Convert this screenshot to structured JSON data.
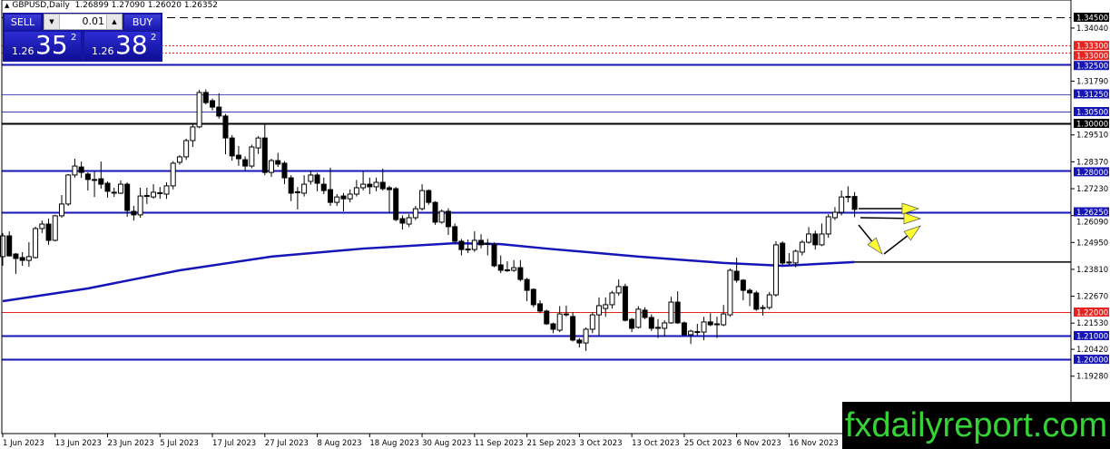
{
  "header": {
    "symbol_timeframe": "GBPUSD,Daily",
    "ohlc": "1.26899 1.27090 1.26020 1.26352"
  },
  "trade_panel": {
    "sell_label": "SELL",
    "buy_label": "BUY",
    "lot_size": "0.01",
    "sell_price_prefix": "1.26",
    "sell_price_big": "35",
    "sell_price_sup": "2",
    "buy_price_prefix": "1.26",
    "buy_price_big": "38",
    "buy_price_sup": "2",
    "step_down_icon": "triangle-down-icon",
    "step_up_icon": "triangle-up-icon"
  },
  "watermark": "fxdailyreport.com",
  "chart_data": {
    "type": "candlestick",
    "title": "GBPUSD,Daily",
    "ylim": [
      1.1895,
      1.3495
    ],
    "grid": false,
    "colors": {
      "bull_body": "#ffffff",
      "bear_body": "#000000",
      "wick": "#000000",
      "ma": "#1515b8"
    },
    "x_ticks": [
      {
        "label": "1 Jun 2023",
        "bar": 0
      },
      {
        "label": "13 Jun 2023",
        "bar": 8
      },
      {
        "label": "23 Jun 2023",
        "bar": 16
      },
      {
        "label": "5 Jul 2023",
        "bar": 24
      },
      {
        "label": "17 Jul 2023",
        "bar": 32
      },
      {
        "label": "27 Jul 2023",
        "bar": 40
      },
      {
        "label": "8 Aug 2023",
        "bar": 48
      },
      {
        "label": "18 Aug 2023",
        "bar": 56
      },
      {
        "label": "30 Aug 2023",
        "bar": 64
      },
      {
        "label": "11 Sep 2023",
        "bar": 72
      },
      {
        "label": "21 Sep 2023",
        "bar": 80
      },
      {
        "label": "3 Oct 2023",
        "bar": 88
      },
      {
        "label": "13 Oct 2023",
        "bar": 96
      },
      {
        "label": "25 Oct 2023",
        "bar": 104
      },
      {
        "label": "6 Nov 2023",
        "bar": 112
      },
      {
        "label": "16 Nov 2023",
        "bar": 120
      }
    ],
    "y_ticks": [
      "1.34040",
      "1.31790",
      "1.29510",
      "1.28370",
      "1.27230",
      "1.26090",
      "1.24950",
      "1.23810",
      "1.22670",
      "1.21530",
      "1.20420",
      "1.19280"
    ],
    "levels": [
      {
        "price": "1.34500",
        "color": "#000000",
        "style": "dashed"
      },
      {
        "price": "1.33300",
        "color": "#e8231f",
        "style": "dotted"
      },
      {
        "price": "1.33000",
        "color": "#e8231f",
        "style": "dotted"
      },
      {
        "price": "1.32500",
        "color": "#1515b8",
        "style": "thick"
      },
      {
        "price": "1.31250",
        "color": "#5555c0",
        "style": "thin"
      },
      {
        "price": "1.30500",
        "color": "#3a3ab8",
        "style": "thin"
      },
      {
        "price": "1.30000",
        "color": "#000000",
        "style": "thick"
      },
      {
        "price": "1.28000",
        "color": "#1515b8",
        "style": "thick"
      },
      {
        "price": "1.26250",
        "color": "#1515b8",
        "style": "thick"
      },
      {
        "price": "1.22000",
        "color": "#e8231f",
        "style": "thin"
      },
      {
        "price": "1.21000",
        "color": "#1515b8",
        "style": "thick"
      },
      {
        "price": "1.20000",
        "color": "#1515b8",
        "style": "thick"
      }
    ],
    "extra_line": {
      "price": 1.2412,
      "from_bar": 130,
      "color": "#000000"
    },
    "moving_average": [
      [
        0,
        1.2246
      ],
      [
        13,
        1.23
      ],
      [
        27,
        1.2377
      ],
      [
        41,
        1.2435
      ],
      [
        55,
        1.2469
      ],
      [
        69,
        1.2492
      ],
      [
        76,
        1.2488
      ],
      [
        83,
        1.2469
      ],
      [
        97,
        1.2435
      ],
      [
        110,
        1.2408
      ],
      [
        119,
        1.2396
      ],
      [
        130,
        1.2412
      ]
    ],
    "candles": [
      [
        1.2435,
        1.2535,
        1.2396,
        1.2523
      ],
      [
        1.2523,
        1.2542,
        1.2435,
        1.2438
      ],
      [
        1.2446,
        1.245,
        1.2362,
        1.2427
      ],
      [
        1.2431,
        1.2454,
        1.2396,
        1.2419
      ],
      [
        1.2419,
        1.2496,
        1.2392,
        1.2435
      ],
      [
        1.2431,
        1.2562,
        1.2427,
        1.2554
      ],
      [
        1.2554,
        1.2588,
        1.2535,
        1.2573
      ],
      [
        1.2573,
        1.2596,
        1.2485,
        1.2504
      ],
      [
        1.2504,
        1.2612,
        1.25,
        1.2608
      ],
      [
        1.2608,
        1.2696,
        1.26,
        1.2658
      ],
      [
        1.2658,
        1.2785,
        1.265,
        1.2781
      ],
      [
        1.2781,
        1.285,
        1.277,
        1.2819
      ],
      [
        1.2815,
        1.2838,
        1.2769,
        1.2792
      ],
      [
        1.2785,
        1.2792,
        1.2715,
        1.2762
      ],
      [
        1.2762,
        1.2796,
        1.2688,
        1.276
      ],
      [
        1.2765,
        1.2838,
        1.2723,
        1.2742
      ],
      [
        1.2746,
        1.2754,
        1.2685,
        1.2712
      ],
      [
        1.2708,
        1.2727,
        1.2688,
        1.2706
      ],
      [
        1.2704,
        1.2758,
        1.27,
        1.2742
      ],
      [
        1.2742,
        1.275,
        1.2604,
        1.2631
      ],
      [
        1.2627,
        1.265,
        1.2588,
        1.2612
      ],
      [
        1.2612,
        1.2727,
        1.26,
        1.2692
      ],
      [
        1.2692,
        1.2727,
        1.2658,
        1.2694
      ],
      [
        1.2688,
        1.2742,
        1.2681,
        1.2708
      ],
      [
        1.2706,
        1.273,
        1.268,
        1.2704
      ],
      [
        1.27,
        1.275,
        1.268,
        1.2735
      ],
      [
        1.2735,
        1.284,
        1.272,
        1.2831
      ],
      [
        1.2835,
        1.2865,
        1.2825,
        1.2858
      ],
      [
        1.2858,
        1.2935,
        1.2845,
        1.2927
      ],
      [
        1.2927,
        1.2995,
        1.29,
        1.2985
      ],
      [
        1.2985,
        1.3142,
        1.298,
        1.3131
      ],
      [
        1.3131,
        1.3144,
        1.308,
        1.3088
      ],
      [
        1.3096,
        1.3105,
        1.3055,
        1.3069
      ],
      [
        1.3069,
        1.3127,
        1.302,
        1.3031
      ],
      [
        1.3031,
        1.304,
        1.2869,
        1.2938
      ],
      [
        1.2938,
        1.295,
        1.2842,
        1.2862
      ],
      [
        1.2865,
        1.2904,
        1.282,
        1.285
      ],
      [
        1.2846,
        1.286,
        1.28,
        1.2819
      ],
      [
        1.2819,
        1.291,
        1.281,
        1.29
      ],
      [
        1.2896,
        1.2946,
        1.287,
        1.2938
      ],
      [
        1.2938,
        1.3,
        1.278,
        1.2792
      ],
      [
        1.2792,
        1.285,
        1.2773,
        1.2842
      ],
      [
        1.2842,
        1.2875,
        1.2815,
        1.2827
      ],
      [
        1.2831,
        1.284,
        1.2742,
        1.2769
      ],
      [
        1.2769,
        1.278,
        1.267,
        1.2704
      ],
      [
        1.2708,
        1.273,
        1.2635,
        1.271
      ],
      [
        1.2704,
        1.278,
        1.269,
        1.2742
      ],
      [
        1.2754,
        1.28,
        1.274,
        1.2781
      ],
      [
        1.2781,
        1.279,
        1.2712,
        1.2746
      ],
      [
        1.2742,
        1.277,
        1.27,
        1.2715
      ],
      [
        1.2719,
        1.2812,
        1.265,
        1.2665
      ],
      [
        1.2665,
        1.27,
        1.265,
        1.2688
      ],
      [
        1.2692,
        1.2705,
        1.2627,
        1.268
      ],
      [
        1.268,
        1.272,
        1.2665,
        1.27
      ],
      [
        1.27,
        1.276,
        1.269,
        1.2727
      ],
      [
        1.2727,
        1.2796,
        1.2715,
        1.2742
      ],
      [
        1.2742,
        1.277,
        1.27,
        1.2731
      ],
      [
        1.2731,
        1.277,
        1.2712,
        1.275
      ],
      [
        1.275,
        1.2808,
        1.2715,
        1.2723
      ],
      [
        1.2727,
        1.2735,
        1.262,
        1.2719
      ],
      [
        1.2723,
        1.273,
        1.2585,
        1.2592
      ],
      [
        1.2596,
        1.261,
        1.255,
        1.2577
      ],
      [
        1.2573,
        1.2615,
        1.256,
        1.26
      ],
      [
        1.26,
        1.265,
        1.259,
        1.2638
      ],
      [
        1.2638,
        1.2742,
        1.263,
        1.2715
      ],
      [
        1.2715,
        1.272,
        1.2655,
        1.2665
      ],
      [
        1.2665,
        1.267,
        1.257,
        1.2581
      ],
      [
        1.2581,
        1.2635,
        1.2575,
        1.2627
      ],
      [
        1.2627,
        1.264,
        1.2527,
        1.2562
      ],
      [
        1.2562,
        1.2575,
        1.249,
        1.25
      ],
      [
        1.25,
        1.251,
        1.244,
        1.2465
      ],
      [
        1.2465,
        1.2508,
        1.245,
        1.2467
      ],
      [
        1.2465,
        1.2542,
        1.2455,
        1.2504
      ],
      [
        1.2504,
        1.253,
        1.247,
        1.2485
      ],
      [
        1.249,
        1.251,
        1.244,
        1.2492
      ],
      [
        1.2485,
        1.2495,
        1.239,
        1.2396
      ],
      [
        1.24,
        1.244,
        1.2365,
        1.2377
      ],
      [
        1.2377,
        1.2415,
        1.237,
        1.2379
      ],
      [
        1.2377,
        1.242,
        1.237,
        1.2388
      ],
      [
        1.2388,
        1.242,
        1.233,
        1.2338
      ],
      [
        1.2338,
        1.2345,
        1.2246,
        1.2292
      ],
      [
        1.2296,
        1.23,
        1.222,
        1.2231
      ],
      [
        1.2235,
        1.225,
        1.2195,
        1.2204
      ],
      [
        1.2204,
        1.221,
        1.2145,
        1.215
      ],
      [
        1.215,
        1.2155,
        1.211,
        1.2127
      ],
      [
        1.2123,
        1.2225,
        1.2115,
        1.2192
      ],
      [
        1.219,
        1.2227,
        1.218,
        1.2192
      ],
      [
        1.2181,
        1.22,
        1.2075,
        1.2081
      ],
      [
        1.2081,
        1.209,
        1.205,
        1.2069
      ],
      [
        1.2069,
        1.2135,
        1.2035,
        1.2127
      ],
      [
        1.2127,
        1.22,
        1.211,
        1.2188
      ],
      [
        1.2188,
        1.2262,
        1.21,
        1.2227
      ],
      [
        1.2215,
        1.2262,
        1.218,
        1.2231
      ],
      [
        1.2231,
        1.229,
        1.2215,
        1.2281
      ],
      [
        1.2281,
        1.2338,
        1.227,
        1.2308
      ],
      [
        1.2308,
        1.232,
        1.216,
        1.2165
      ],
      [
        1.2169,
        1.2175,
        1.2115,
        1.2131
      ],
      [
        1.2135,
        1.2225,
        1.213,
        1.2212
      ],
      [
        1.2208,
        1.222,
        1.217,
        1.2177
      ],
      [
        1.2177,
        1.219,
        1.212,
        1.2131
      ],
      [
        1.2131,
        1.217,
        1.209,
        1.2135
      ],
      [
        1.2131,
        1.2165,
        1.2095,
        1.2154
      ],
      [
        1.2154,
        1.2265,
        1.215,
        1.2242
      ],
      [
        1.2242,
        1.2288,
        1.215,
        1.2154
      ],
      [
        1.2154,
        1.216,
        1.21,
        1.2104
      ],
      [
        1.2104,
        1.2125,
        1.2065,
        1.2119
      ],
      [
        1.2115,
        1.215,
        1.21,
        1.2117
      ],
      [
        1.2115,
        1.218,
        1.208,
        1.2158
      ],
      [
        1.2158,
        1.2195,
        1.214,
        1.2146
      ],
      [
        1.2146,
        1.218,
        1.209,
        1.215
      ],
      [
        1.2146,
        1.223,
        1.214,
        1.2192
      ],
      [
        1.2188,
        1.2385,
        1.218,
        1.2377
      ],
      [
        1.2373,
        1.243,
        1.2325,
        1.2335
      ],
      [
        1.2335,
        1.234,
        1.225,
        1.2292
      ],
      [
        1.2292,
        1.23,
        1.2225,
        1.2281
      ],
      [
        1.2281,
        1.229,
        1.2205,
        1.2212
      ],
      [
        1.2215,
        1.223,
        1.2185,
        1.2219
      ],
      [
        1.2219,
        1.2285,
        1.221,
        1.2273
      ],
      [
        1.2273,
        1.25,
        1.2265,
        1.2485
      ],
      [
        1.2492,
        1.25,
        1.24,
        1.2408
      ],
      [
        1.241,
        1.245,
        1.2395,
        1.2412
      ],
      [
        1.2408,
        1.2465,
        1.239,
        1.2458
      ],
      [
        1.2454,
        1.2505,
        1.244,
        1.2496
      ],
      [
        1.2496,
        1.256,
        1.249,
        1.2531
      ],
      [
        1.2531,
        1.2545,
        1.2465,
        1.2485
      ],
      [
        1.2485,
        1.2575,
        1.248,
        1.2531
      ],
      [
        1.2531,
        1.2615,
        1.2515,
        1.2604
      ],
      [
        1.26,
        1.2645,
        1.259,
        1.2623
      ],
      [
        1.2623,
        1.2715,
        1.261,
        1.2688
      ],
      [
        1.2688,
        1.2733,
        1.2665,
        1.269
      ],
      [
        1.26899,
        1.2709,
        1.2602,
        1.26352
      ]
    ],
    "annotations": [
      {
        "type": "arrow",
        "meaning": "continuation-right",
        "color": "#ffff33"
      },
      {
        "type": "arrow",
        "meaning": "continuation-right",
        "color": "#ffff33"
      },
      {
        "type": "arrow",
        "meaning": "pullback-down",
        "color": "#ffff33"
      },
      {
        "type": "arrow",
        "meaning": "rebound-up",
        "color": "#ffff33"
      }
    ]
  }
}
